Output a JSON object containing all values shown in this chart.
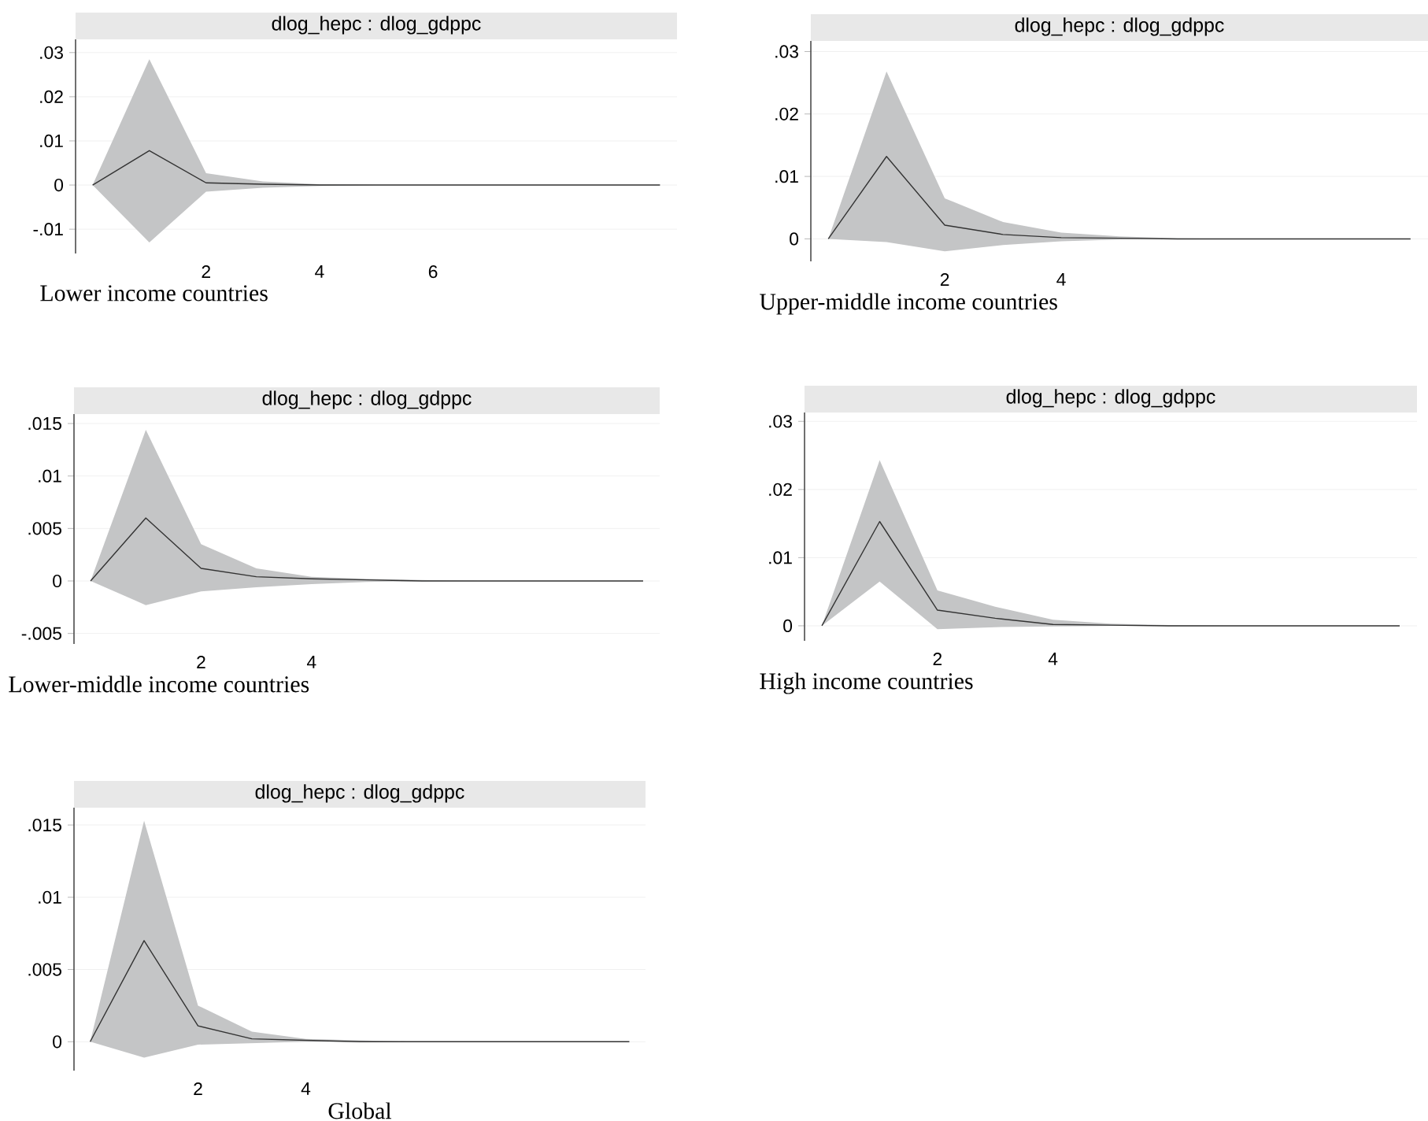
{
  "chart_data": [
    {
      "type": "line",
      "title": "dlog_hepc : dlog_gdppc",
      "annotations": [
        "Lower income countries"
      ],
      "x": [
        0,
        1,
        2,
        3,
        4,
        5,
        6,
        7,
        8,
        9,
        10
      ],
      "xlim": [
        -0.3,
        10.3
      ],
      "xticks": [
        2,
        4,
        6
      ],
      "ylim": [
        -0.0155,
        0.033
      ],
      "yticks": [
        {
          "value": -0.01,
          "label": "-.01"
        },
        0,
        {
          "value": 0.01,
          "label": ".01"
        },
        {
          "value": 0.02,
          "label": ".02"
        },
        {
          "value": 0.03,
          "label": ".03"
        }
      ],
      "grid": "y",
      "series": [
        {
          "color": "#333333",
          "values": [
            0,
            0.0078,
            0.0005,
            0.0002,
            0,
            0,
            0,
            0,
            0,
            0,
            0
          ],
          "lower": [
            0,
            -0.013,
            -0.0015,
            -0.0006,
            -0.0002,
            0,
            0,
            0,
            0,
            0,
            0
          ],
          "upper": [
            0,
            0.0285,
            0.0027,
            0.0008,
            0.0002,
            0,
            0,
            0,
            0,
            0,
            0
          ]
        }
      ]
    },
    {
      "type": "line",
      "title": "dlog_hepc : dlog_gdppc",
      "annotations": [
        "Upper-middle income countries"
      ],
      "x": [
        0,
        1,
        2,
        3,
        4,
        5,
        6,
        7,
        8,
        9,
        10
      ],
      "xlim": [
        -0.3,
        10.3
      ],
      "xticks": [
        2,
        4
      ],
      "ylim": [
        -0.0036,
        0.0317
      ],
      "yticks": [
        0,
        {
          "value": 0.01,
          "label": ".01"
        },
        {
          "value": 0.02,
          "label": ".02"
        },
        {
          "value": 0.03,
          "label": ".03"
        }
      ],
      "grid": "y",
      "series": [
        {
          "color": "#333333",
          "values": [
            0,
            0.0132,
            0.0022,
            0.0007,
            0.0002,
            0.0001,
            0,
            0,
            0,
            0,
            0
          ],
          "lower": [
            0,
            -0.0005,
            -0.002,
            -0.001,
            -0.0004,
            -0.0001,
            0,
            0,
            0,
            0,
            0
          ],
          "upper": [
            0,
            0.0268,
            0.0065,
            0.0027,
            0.001,
            0.0004,
            0.0001,
            0,
            0,
            0,
            0
          ]
        }
      ]
    },
    {
      "type": "line",
      "title": "dlog_hepc : dlog_gdppc",
      "annotations": [
        "Lower-middle income countries"
      ],
      "x": [
        0,
        1,
        2,
        3,
        4,
        5,
        6,
        7,
        8,
        9,
        10
      ],
      "xlim": [
        -0.3,
        10.3
      ],
      "xticks": [
        2,
        4
      ],
      "ylim": [
        -0.006,
        0.0159
      ],
      "yticks": [
        {
          "value": -0.005,
          "label": "-.005"
        },
        0,
        {
          "value": 0.005,
          "label": ".005"
        },
        {
          "value": 0.01,
          "label": ".01"
        },
        {
          "value": 0.015,
          "label": ".015"
        }
      ],
      "grid": "y",
      "series": [
        {
          "color": "#333333",
          "values": [
            0,
            0.006,
            0.0012,
            0.0004,
            0.0002,
            0.0001,
            0,
            0,
            0,
            0,
            0
          ],
          "lower": [
            0,
            -0.0023,
            -0.001,
            -0.0006,
            -0.0003,
            -0.0001,
            0,
            0,
            0,
            0,
            0
          ],
          "upper": [
            0,
            0.0144,
            0.0035,
            0.0012,
            0.0004,
            0.0002,
            0.0001,
            0,
            0,
            0,
            0
          ]
        }
      ]
    },
    {
      "type": "line",
      "title": "dlog_hepc : dlog_gdppc",
      "annotations": [
        "High income countries"
      ],
      "x": [
        0,
        1,
        2,
        3,
        4,
        5,
        6,
        7,
        8,
        9,
        10
      ],
      "xlim": [
        -0.3,
        10.3
      ],
      "xticks": [
        2,
        4
      ],
      "ylim": [
        -0.0022,
        0.0313
      ],
      "yticks": [
        0,
        {
          "value": 0.01,
          "label": ".01"
        },
        {
          "value": 0.02,
          "label": ".02"
        },
        {
          "value": 0.03,
          "label": ".03"
        }
      ],
      "grid": "y",
      "series": [
        {
          "color": "#333333",
          "values": [
            0,
            0.0153,
            0.0023,
            0.0011,
            0.0002,
            0.0001,
            0,
            0,
            0,
            0,
            0
          ],
          "lower": [
            0,
            0.0065,
            -0.0005,
            -0.0002,
            -0.0001,
            0,
            0,
            0,
            0,
            0,
            0
          ],
          "upper": [
            0,
            0.0243,
            0.0052,
            0.0028,
            0.0009,
            0.0003,
            0.0001,
            0,
            0,
            0,
            0
          ]
        }
      ]
    },
    {
      "type": "line",
      "title": "dlog_hepc : dlog_gdppc",
      "annotations": [
        "Global"
      ],
      "x": [
        0,
        1,
        2,
        3,
        4,
        5,
        6,
        7,
        8,
        9,
        10
      ],
      "xlim": [
        -0.3,
        10.3
      ],
      "xticks": [
        2,
        4
      ],
      "ylim": [
        -0.002,
        0.0162
      ],
      "yticks": [
        0,
        {
          "value": 0.005,
          "label": ".005"
        },
        {
          "value": 0.01,
          "label": ".01"
        },
        {
          "value": 0.015,
          "label": ".015"
        }
      ],
      "grid": "y",
      "series": [
        {
          "color": "#333333",
          "values": [
            0,
            0.007,
            0.0011,
            0.0002,
            0.0001,
            0,
            0,
            0,
            0,
            0,
            0
          ],
          "lower": [
            0,
            -0.0011,
            -0.0002,
            -0.0001,
            0,
            0,
            0,
            0,
            0,
            0,
            0
          ],
          "upper": [
            0,
            0.0153,
            0.0025,
            0.0007,
            0.0002,
            0.0001,
            0,
            0,
            0,
            0,
            0
          ]
        }
      ]
    }
  ]
}
